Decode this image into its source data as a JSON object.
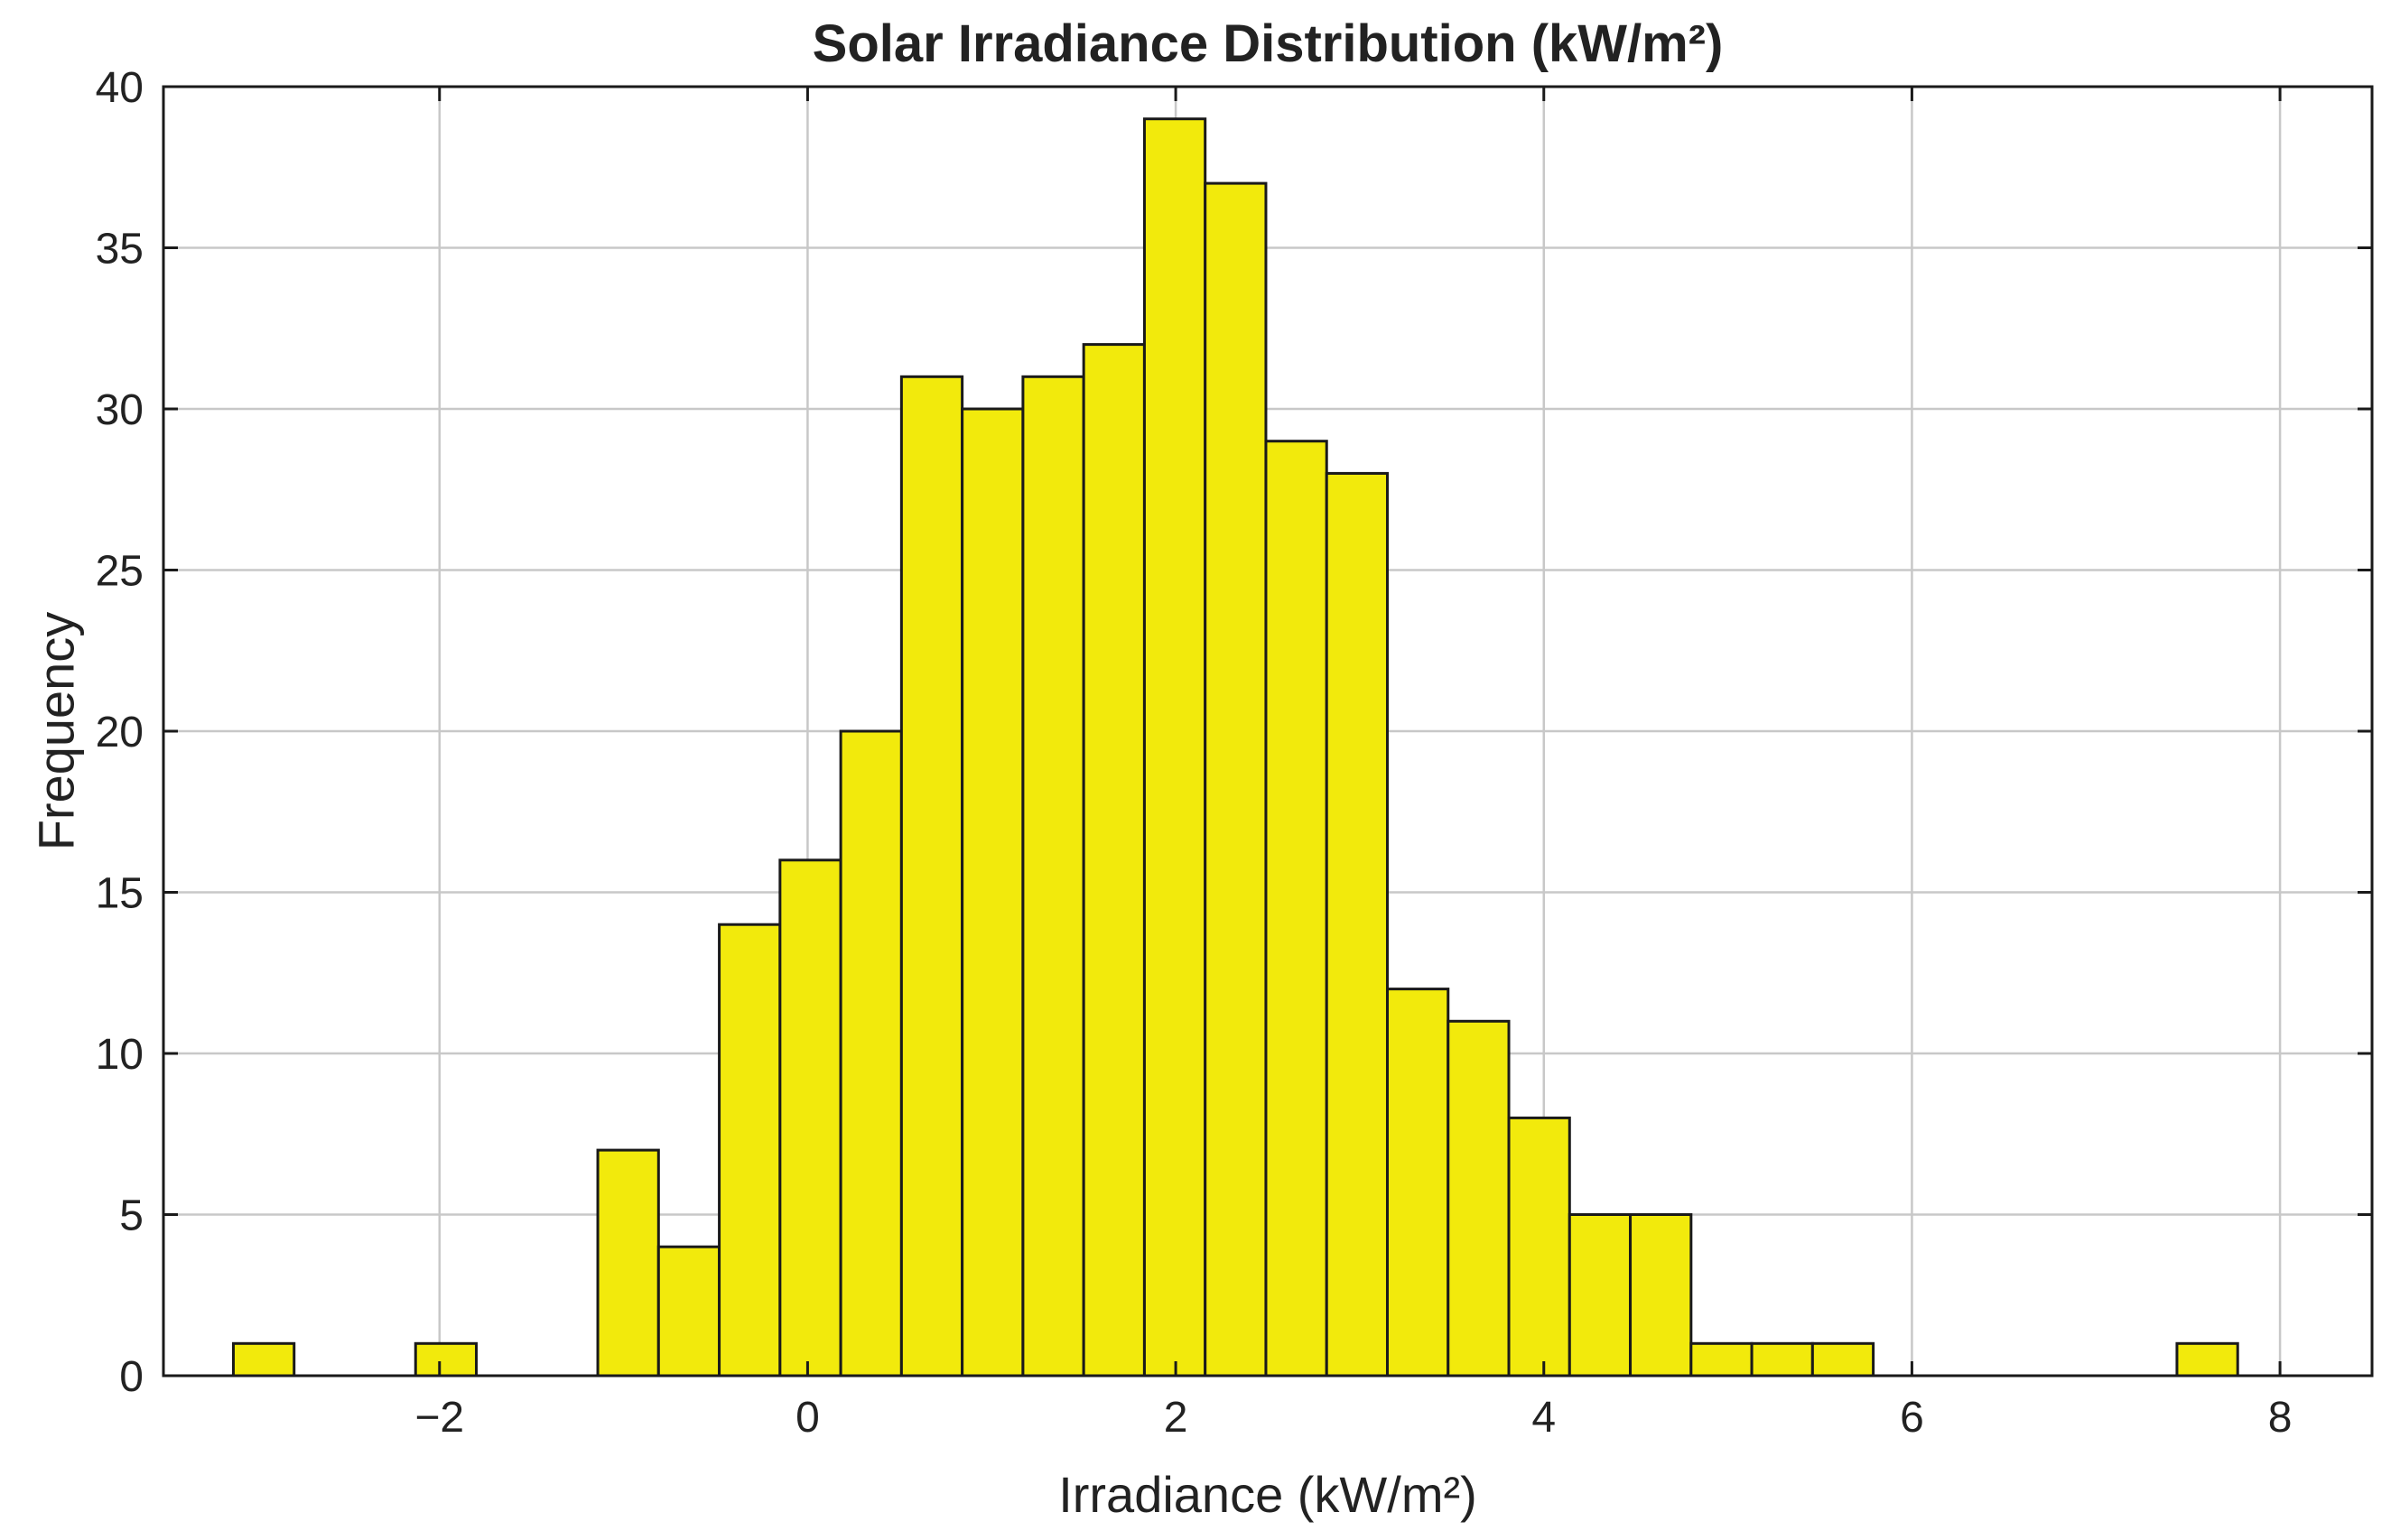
{
  "chart_data": {
    "type": "bar",
    "title": "Solar Irradiance Distribution (kW/m²)",
    "xlabel": "Irradiance (kW/m²)",
    "ylabel": "Frequency",
    "xlim": [
      -3.5,
      8.5
    ],
    "ylim": [
      0,
      40
    ],
    "xticks": [
      -2,
      0,
      2,
      4,
      6,
      8
    ],
    "xtick_labels": [
      "−2",
      "0",
      "2",
      "4",
      "6",
      "8"
    ],
    "yticks": [
      0,
      5,
      10,
      15,
      20,
      25,
      30,
      35,
      40
    ],
    "ytick_labels": [
      "0",
      "5",
      "10",
      "15",
      "20",
      "25",
      "30",
      "35",
      "40"
    ],
    "grid": true,
    "bin_edges": [
      -3.12,
      -2.79,
      -2.46,
      -2.13,
      -1.8,
      -1.47,
      -1.14,
      -0.81,
      -0.48,
      -0.15,
      0.18,
      0.51,
      0.84,
      1.17,
      1.5,
      1.83,
      2.16,
      2.49,
      2.82,
      3.15,
      3.48,
      3.81,
      4.14,
      4.47,
      4.8,
      5.13,
      5.46,
      5.79,
      6.12,
      6.45,
      6.78,
      7.11,
      7.44,
      7.77
    ],
    "values": [
      1,
      0,
      0,
      1,
      0,
      0,
      7,
      4,
      14,
      16,
      20,
      31,
      30,
      31,
      32,
      39,
      37,
      29,
      28,
      12,
      11,
      8,
      5,
      5,
      1,
      1,
      1,
      0,
      0,
      0,
      0,
      0,
      1
    ],
    "bar_color": "#f2ea0c",
    "edge_color": "#1a1a1a"
  }
}
